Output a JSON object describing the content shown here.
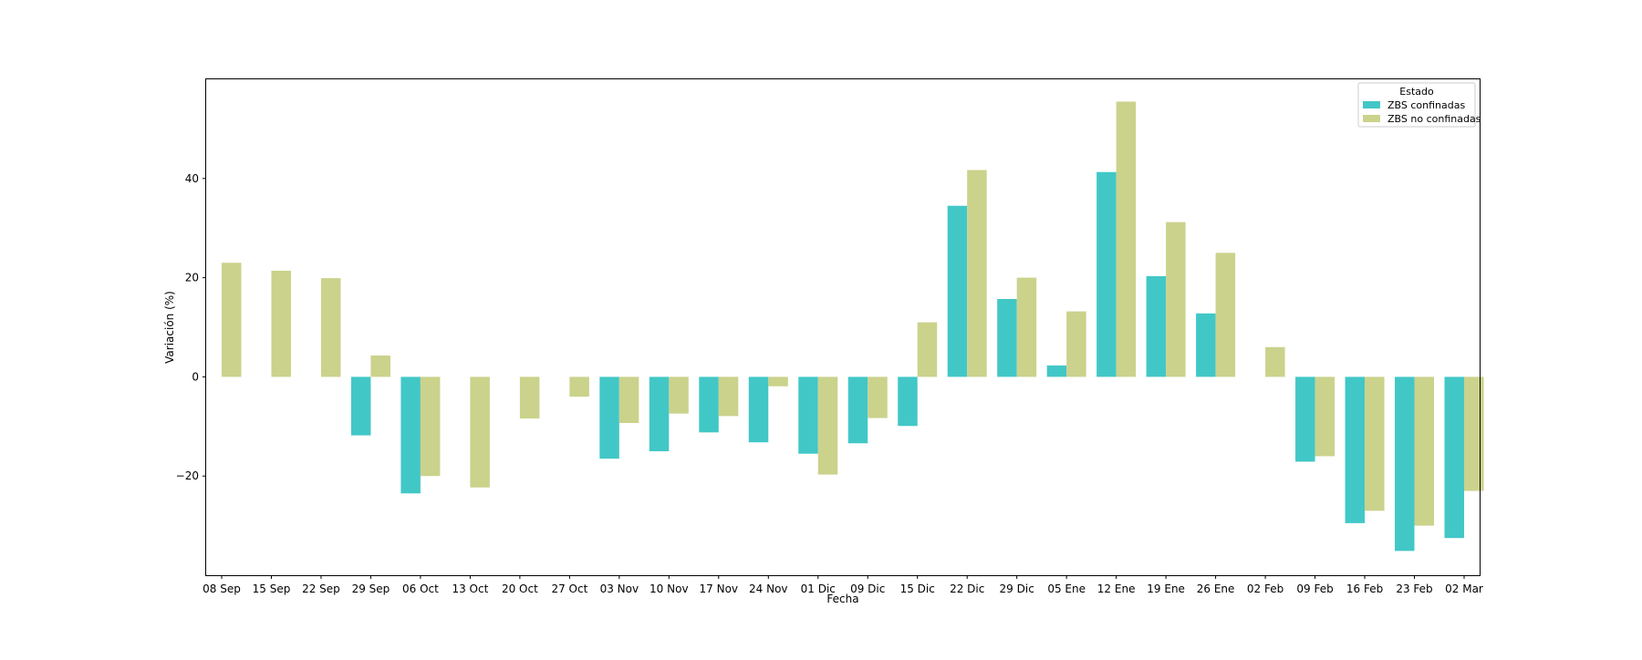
{
  "chart_data": {
    "type": "bar",
    "xlabel": "Fecha",
    "ylabel": "Variación (%)",
    "categories": [
      "08 Sep",
      "15 Sep",
      "22 Sep",
      "29 Sep",
      "06 Oct",
      "13 Oct",
      "20 Oct",
      "27 Oct",
      "03 Nov",
      "10 Nov",
      "17 Nov",
      "24 Nov",
      "01 Dic",
      "09 Dic",
      "15 Dic",
      "22 Dic",
      "29 Dic",
      "05 Ene",
      "12 Ene",
      "19 Ene",
      "26 Ene",
      "02 Feb",
      "09 Feb",
      "16 Feb",
      "23 Feb",
      "02 Mar"
    ],
    "ylim": [
      -40,
      60
    ],
    "yticks": [
      -20,
      0,
      20,
      40
    ],
    "grid": false,
    "legend": {
      "title": "Estado",
      "placement": "top-right"
    },
    "series": [
      {
        "name": "ZBS confinadas",
        "color": "#42c7c7",
        "values": [
          null,
          null,
          null,
          -11.8,
          -23.5,
          null,
          null,
          null,
          -16.5,
          -15.0,
          -11.2,
          -13.2,
          -15.5,
          -13.4,
          -9.9,
          34.5,
          15.7,
          2.3,
          41.3,
          20.3,
          12.8,
          null,
          -17.1,
          -29.5,
          -35.1,
          -32.5
        ]
      },
      {
        "name": "ZBS no confinadas",
        "color": "#cbd28b",
        "values": [
          23.0,
          21.4,
          19.9,
          4.3,
          -20.0,
          -22.3,
          -8.4,
          -4.0,
          -9.3,
          -7.4,
          -7.9,
          -1.9,
          -19.7,
          -8.3,
          11.0,
          41.7,
          20.0,
          13.2,
          55.5,
          31.2,
          25.0,
          6.0,
          -16.0,
          -27.0,
          -30.0,
          -23.0
        ]
      }
    ]
  }
}
